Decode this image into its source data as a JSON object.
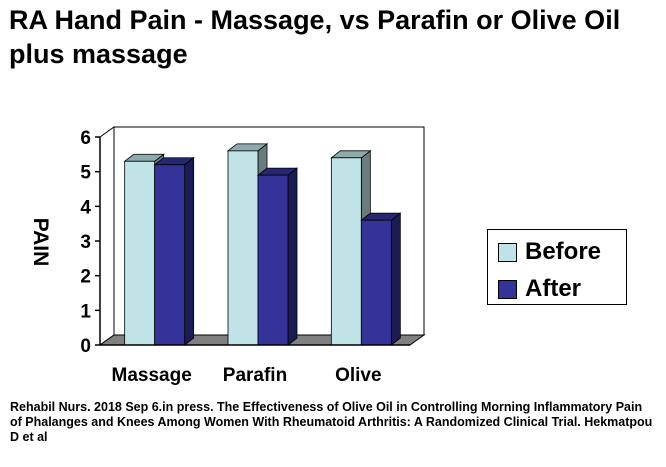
{
  "page": {
    "title": "RA Hand Pain - Massage, vs Parafin or Olive Oil plus massage",
    "footer": "Rehabil Nurs. 2018 Sep 6.in press. The Effectiveness of Olive Oil in Controlling Morning Inflammatory Pain of Phalanges and Knees Among Women With Rheumatoid Arthritis: A Randomized Clinical Trial. Hekmatpou D et al"
  },
  "chart_data": {
    "type": "bar",
    "title": "RA Hand Pain - Massage, vs Parafin or Olive Oil plus massage",
    "xlabel": "",
    "ylabel": "PAIN",
    "categories": [
      "Massage",
      "Parafin",
      "Olive"
    ],
    "series": [
      {
        "name": "Before",
        "values": [
          5.3,
          5.6,
          5.4
        ],
        "color": "#bfe3e6"
      },
      {
        "name": "After",
        "values": [
          5.2,
          4.9,
          3.6
        ],
        "color": "#333399"
      }
    ],
    "ylim": [
      0,
      6
    ],
    "yticks": [
      "0",
      "1",
      "2",
      "3",
      "4",
      "5",
      "6"
    ],
    "grid": false,
    "three_d": true,
    "legend_position": "right"
  }
}
